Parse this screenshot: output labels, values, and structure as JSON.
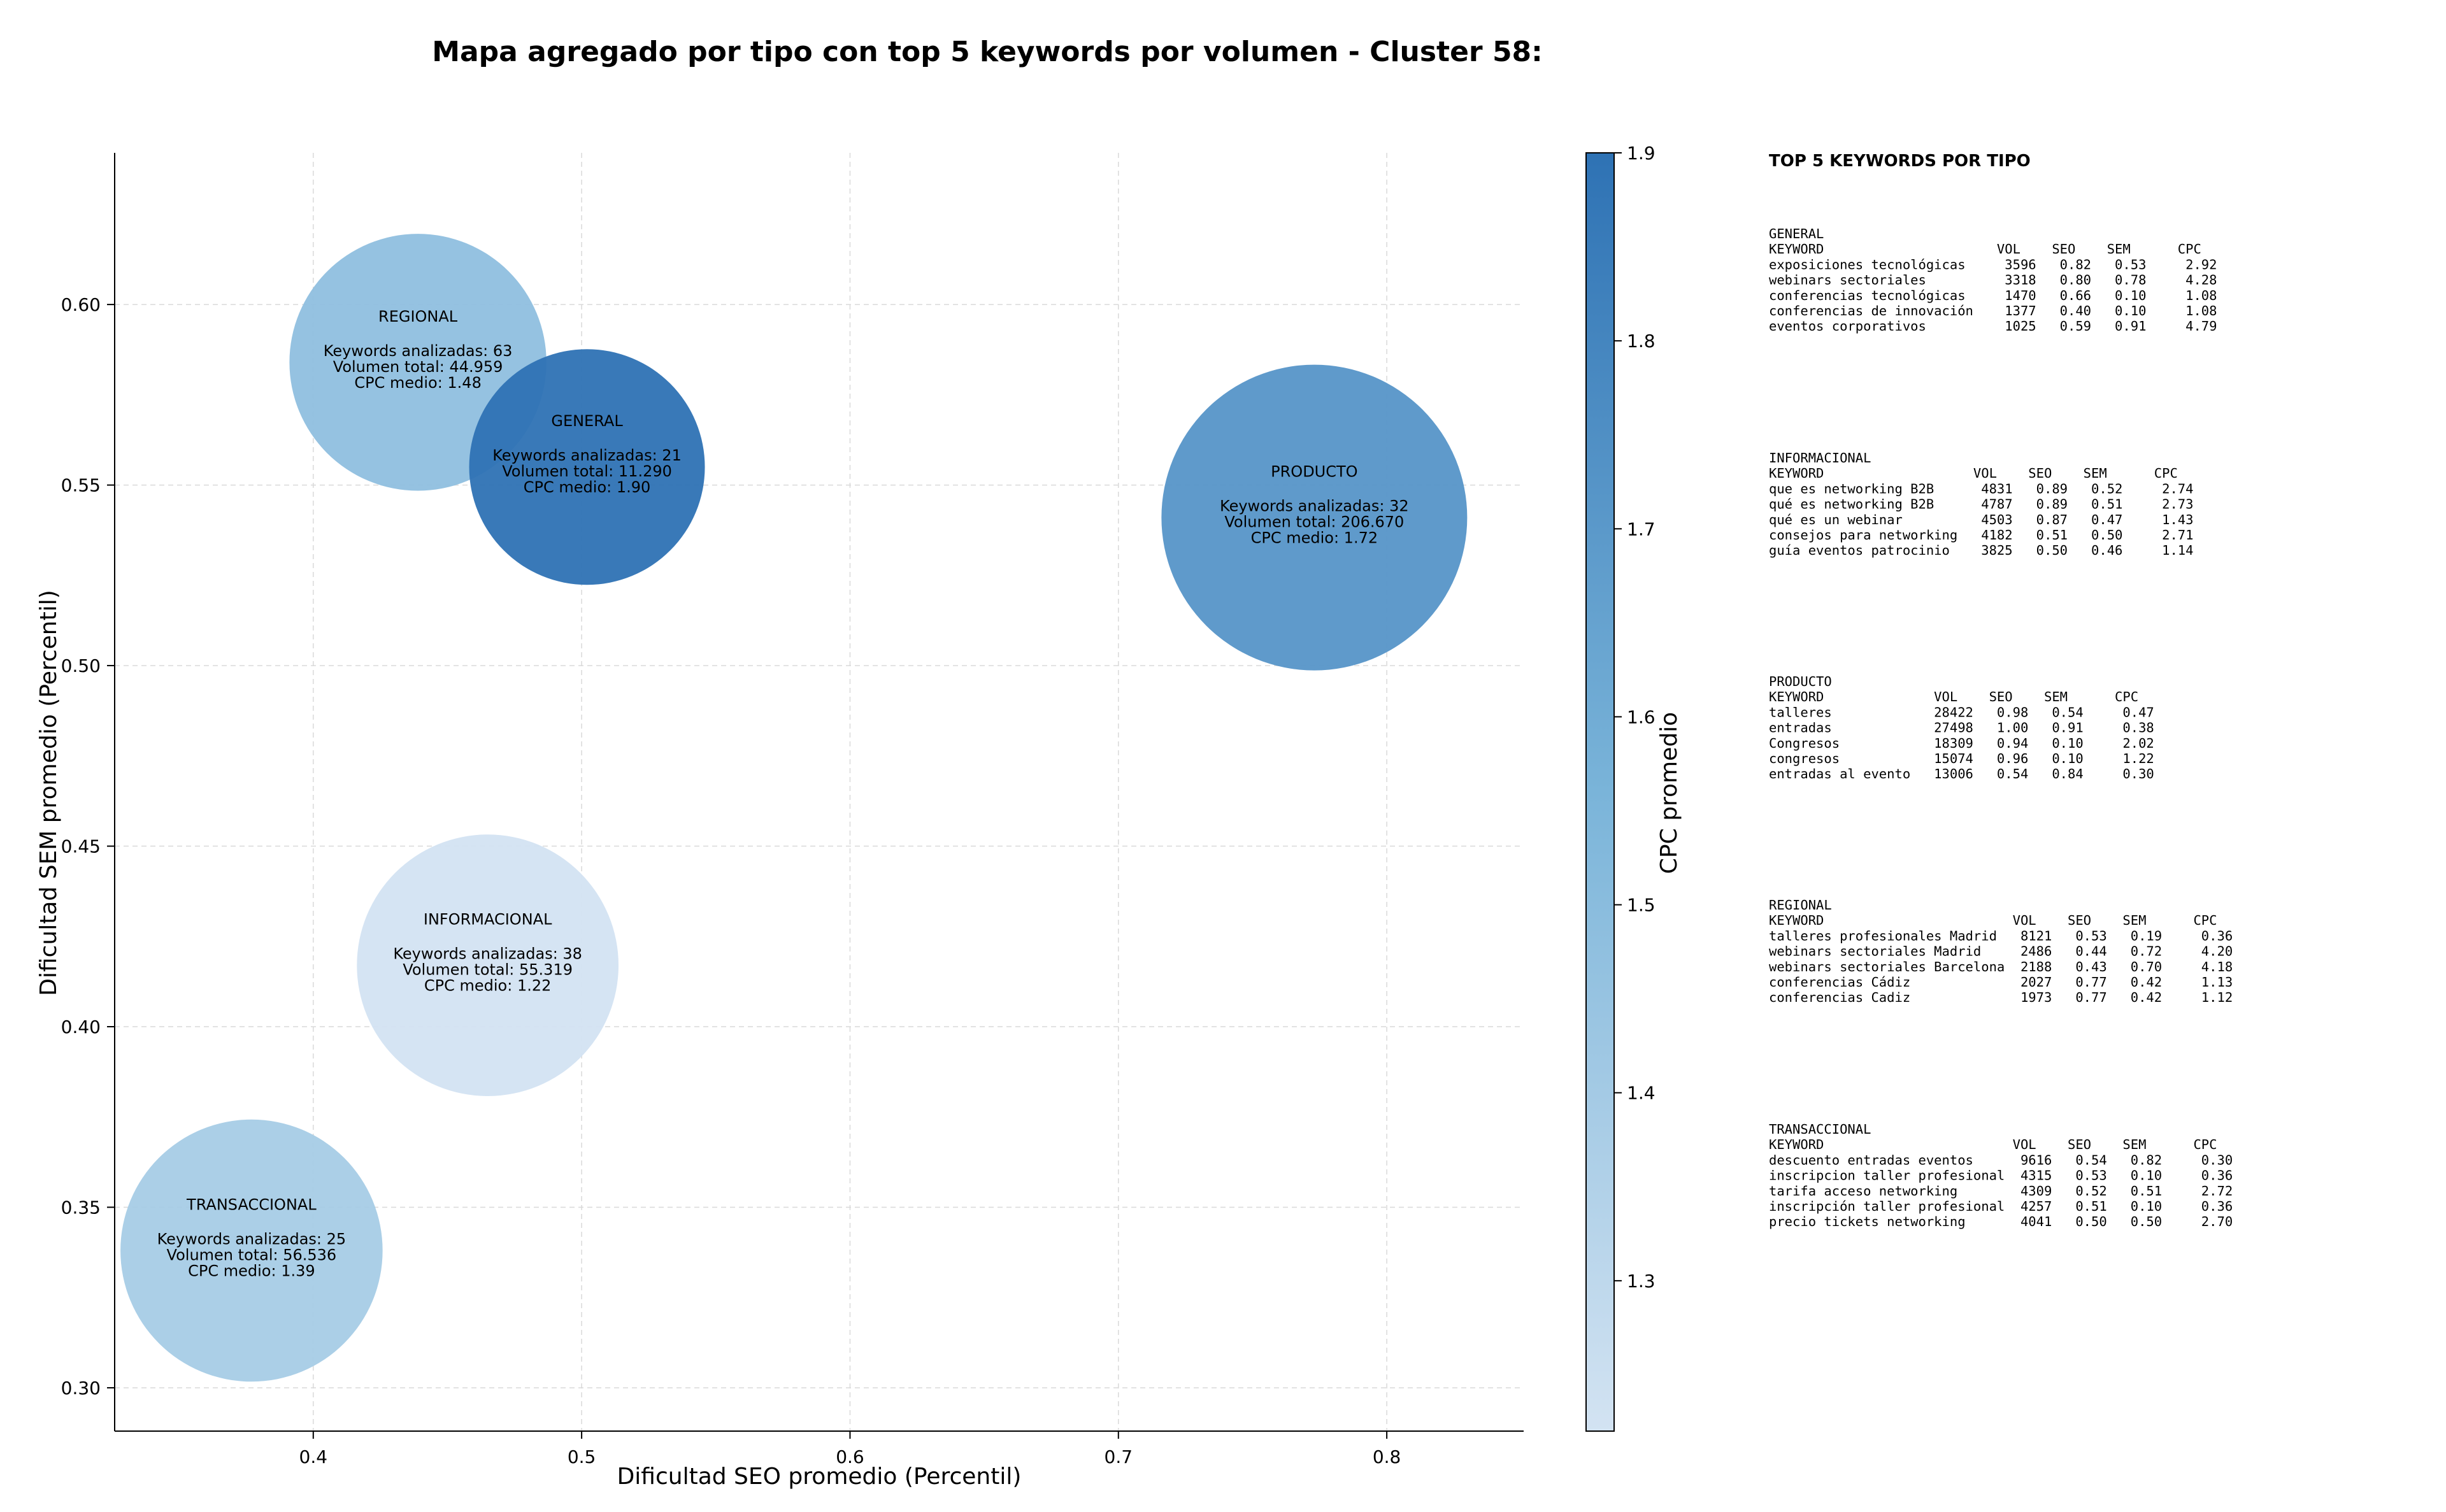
{
  "title": "Mapa agregado por tipo con top 5 keywords por volumen - Cluster 58:",
  "chart_data": {
    "type": "scatter",
    "xlabel": "Dificultad SEO promedio (Percentil)",
    "ylabel": "Dificultad SEM promedio (Percentil)",
    "xlim": [
      0.326,
      0.851
    ],
    "ylim": [
      0.288,
      0.642
    ],
    "xticks": [
      "0.4",
      "0.5",
      "0.6",
      "0.7",
      "0.8"
    ],
    "yticks": [
      "0.30",
      "0.35",
      "0.40",
      "0.45",
      "0.50",
      "0.55",
      "0.60"
    ],
    "grid": true,
    "colorbar": {
      "label": "CPC promedio",
      "min": 1.22,
      "max": 1.9,
      "ticks": [
        "1.3",
        "1.4",
        "1.5",
        "1.6",
        "1.7",
        "1.8",
        "1.9"
      ],
      "color_low": "#d3e3f2",
      "color_mid": "#7ab4d9",
      "color_high": "#2e72b4"
    },
    "bubbles": [
      {
        "name": "REGIONAL",
        "x": 0.439,
        "y": 0.584,
        "keywords": 63,
        "volume": 44959,
        "cpc": 1.48,
        "lines": [
          "REGIONAL",
          "",
          "Keywords analizadas: 63",
          "Volumen total: 44.959",
          "CPC medio: 1.48"
        ]
      },
      {
        "name": "GENERAL",
        "x": 0.502,
        "y": 0.555,
        "keywords": 21,
        "volume": 11290,
        "cpc": 1.9,
        "lines": [
          "GENERAL",
          "",
          "Keywords analizadas: 21",
          "Volumen total: 11.290",
          "CPC medio: 1.90"
        ]
      },
      {
        "name": "PRODUCTO",
        "x": 0.773,
        "y": 0.541,
        "keywords": 32,
        "volume": 206670,
        "cpc": 1.72,
        "lines": [
          "PRODUCTO",
          "",
          "Keywords analizadas: 32",
          "Volumen total: 206.670",
          "CPC medio: 1.72"
        ]
      },
      {
        "name": "INFORMACIONAL",
        "x": 0.465,
        "y": 0.417,
        "keywords": 38,
        "volume": 55319,
        "cpc": 1.22,
        "lines": [
          "INFORMACIONAL",
          "",
          "Keywords analizadas: 38",
          "Volumen total: 55.319",
          "CPC medio: 1.22"
        ]
      },
      {
        "name": "TRANSACCIONAL",
        "x": 0.377,
        "y": 0.338,
        "keywords": 25,
        "volume": 56536,
        "cpc": 1.39,
        "lines": [
          "TRANSACCIONAL",
          "",
          "Keywords analizadas: 25",
          "Volumen total: 56.536",
          "CPC medio: 1.39"
        ]
      }
    ]
  },
  "side_panel": {
    "title": "TOP 5 KEYWORDS POR TIPO",
    "sections": [
      {
        "lines": [
          "GENERAL",
          "KEYWORD                      VOL    SEO    SEM      CPC",
          "exposiciones tecnológicas     3596   0.82   0.53     2.92",
          "webinars sectoriales          3318   0.80   0.78     4.28",
          "conferencias tecnológicas     1470   0.66   0.10     1.08",
          "conferencias de innovación    1377   0.40   0.10     1.08",
          "eventos corporativos          1025   0.59   0.91     4.79"
        ]
      },
      {
        "lines": [
          "INFORMACIONAL",
          "KEYWORD                   VOL    SEO    SEM      CPC",
          "que es networking B2B      4831   0.89   0.52     2.74",
          "qué es networking B2B      4787   0.89   0.51     2.73",
          "qué es un webinar          4503   0.87   0.47     1.43",
          "consejos para networking   4182   0.51   0.50     2.71",
          "guía eventos patrocinio    3825   0.50   0.46     1.14"
        ]
      },
      {
        "lines": [
          "PRODUCTO",
          "KEYWORD              VOL    SEO    SEM      CPC",
          "talleres             28422   0.98   0.54     0.47",
          "entradas             27498   1.00   0.91     0.38",
          "Congresos            18309   0.94   0.10     2.02",
          "congresos            15074   0.96   0.10     1.22",
          "entradas al evento   13006   0.54   0.84     0.30"
        ]
      },
      {
        "lines": [
          "REGIONAL",
          "KEYWORD                        VOL    SEO    SEM      CPC",
          "talleres profesionales Madrid   8121   0.53   0.19     0.36",
          "webinars sectoriales Madrid     2486   0.44   0.72     4.20",
          "webinars sectoriales Barcelona  2188   0.43   0.70     4.18",
          "conferencias Cádiz              2027   0.77   0.42     1.13",
          "conferencias Cadiz              1973   0.77   0.42     1.12"
        ]
      },
      {
        "lines": [
          "TRANSACCIONAL",
          "KEYWORD                        VOL    SEO    SEM      CPC",
          "descuento entradas eventos      9616   0.54   0.82     0.30",
          "inscripcion taller profesional  4315   0.53   0.10     0.36",
          "tarifa acceso networking        4309   0.52   0.51     2.72",
          "inscripción taller profesional  4257   0.51   0.10     0.36",
          "precio tickets networking       4041   0.50   0.50     2.70"
        ]
      }
    ]
  }
}
